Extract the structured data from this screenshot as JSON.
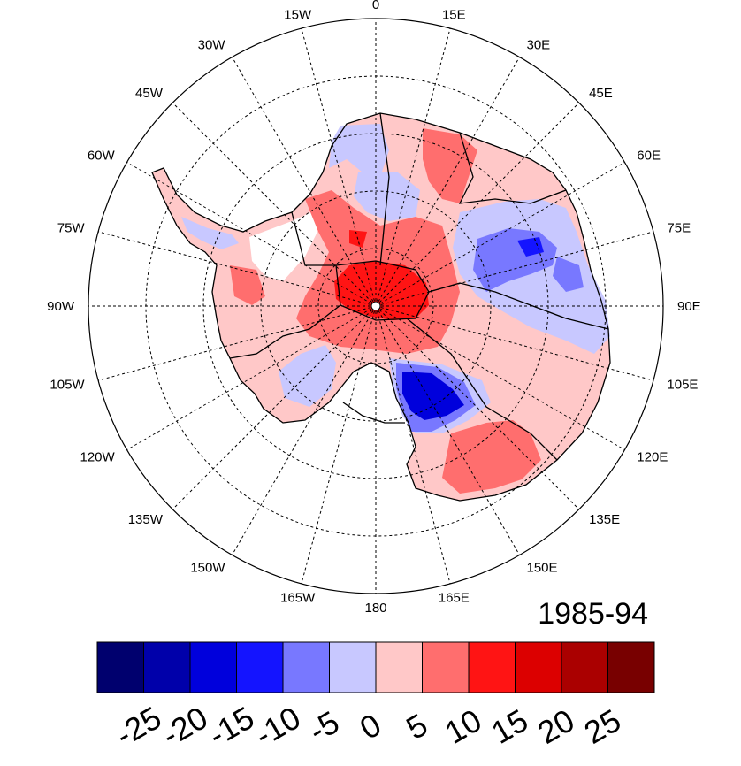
{
  "period_label": "1985-94",
  "longitude_labels": [
    "0",
    "15E",
    "30E",
    "45E",
    "60E",
    "75E",
    "90E",
    "105E",
    "120E",
    "135E",
    "150E",
    "165E",
    "180",
    "165W",
    "150W",
    "135W",
    "120W",
    "105W",
    "90W",
    "75W",
    "60W",
    "45W",
    "30W",
    "15W"
  ],
  "colorbar": {
    "colors": [
      "#00006e",
      "#0000aa",
      "#0000dc",
      "#1414ff",
      "#7878ff",
      "#c8c8ff",
      "#ffc8c8",
      "#ff6e6e",
      "#ff1414",
      "#dc0000",
      "#aa0000",
      "#780000"
    ],
    "tick_labels": [
      "-25",
      "-20",
      "-15",
      "-10",
      "-5",
      "0",
      "5",
      "10",
      "15",
      "20",
      "25"
    ]
  },
  "map": {
    "projection": "south-polar-stereographic",
    "graticule": "dashed",
    "shading_regions": [
      {
        "name": "central-pole-max",
        "level": 20
      },
      {
        "name": "ross-ice-shelf-min",
        "level": -20
      },
      {
        "name": "east-antarctica-75E-min",
        "level": -12
      },
      {
        "name": "wilkes-land-high",
        "level": 8
      }
    ]
  }
}
